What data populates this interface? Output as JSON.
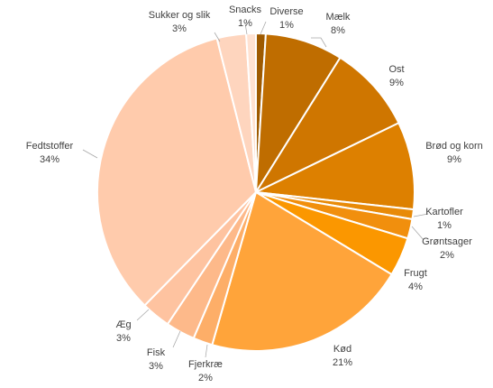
{
  "chart_data": {
    "type": "pie",
    "title": "",
    "categories": [
      "Diverse",
      "Mælk",
      "Ost",
      "Brød og korn",
      "Kartofler",
      "Grøntsager",
      "Frugt",
      "Kød",
      "Fjerkræ",
      "Fisk",
      "Æg",
      "Fedtstoffer",
      "Sukker og slik",
      "Snacks"
    ],
    "values": [
      1,
      8,
      9,
      9,
      1,
      2,
      4,
      21,
      2,
      3,
      3,
      34,
      3,
      1
    ],
    "percent_labels": [
      "1%",
      "8%",
      "9%",
      "9%",
      "1%",
      "2%",
      "4%",
      "21%",
      "2%",
      "3%",
      "3%",
      "34%",
      "3%",
      "1%"
    ],
    "colors": [
      "#9e5a00",
      "#bf6d00",
      "#cf7600",
      "#dd8000",
      "#e88a08",
      "#f18f0d",
      "#fb9700",
      "#ffa43a",
      "#fdae68",
      "#fdb98a",
      "#fec3a0",
      "#ffcbac",
      "#fed5be",
      "#ffe2d2"
    ],
    "legend": "none",
    "start_angle_deg": 0,
    "direction": "clockwise"
  }
}
